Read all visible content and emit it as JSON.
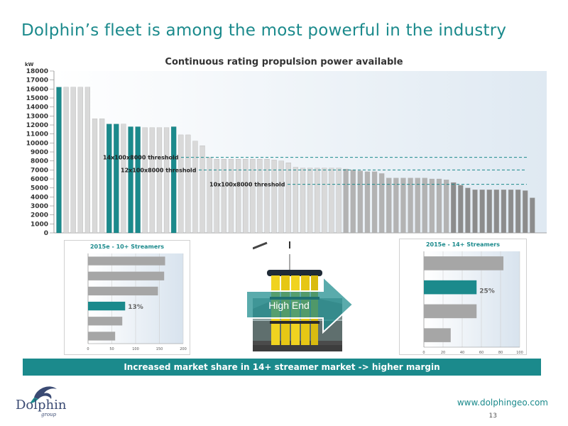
{
  "page": {
    "title": "Dolphin’s fleet is among the most powerful in the industry",
    "banner": "Increased market share in 14+ streamer market -> higher margin",
    "website": "www.dolphingeo.com",
    "page_number": "13",
    "arrow_label": "High End",
    "logo_name": "Dolphin",
    "logo_sub": "group"
  },
  "colors": {
    "accent": "#1b8a8c",
    "light_bar": "#d9d9d9",
    "dark_bar": "#8c8c8c",
    "title": "#1b8a8c"
  },
  "chart_data": [
    {
      "type": "bar",
      "title": "Continuous rating propulsion power available",
      "ylabel": "kW",
      "ylim": [
        0,
        18000
      ],
      "yticks": [
        0,
        1000,
        2000,
        3000,
        4000,
        5000,
        6000,
        7000,
        8000,
        9000,
        10000,
        11000,
        12000,
        13000,
        14000,
        15000,
        16000,
        17000,
        18000
      ],
      "values": [
        16200,
        16200,
        16200,
        16200,
        16200,
        12700,
        12700,
        12100,
        12100,
        12100,
        11800,
        11800,
        11700,
        11700,
        11700,
        11700,
        11800,
        10900,
        10900,
        10200,
        9700,
        8400,
        8200,
        8200,
        8200,
        8200,
        8200,
        8200,
        8200,
        8200,
        8100,
        8000,
        7800,
        7300,
        7200,
        7200,
        7200,
        7200,
        7200,
        7200,
        7100,
        7000,
        6900,
        6800,
        6800,
        6600,
        6100,
        6100,
        6100,
        6100,
        6100,
        6100,
        6000,
        6000,
        5900,
        5600,
        5300,
        5000,
        4800,
        4800,
        4800,
        4800,
        4800,
        4800,
        4800,
        4700,
        3900
      ],
      "highlight_indices": [
        0,
        7,
        8,
        10,
        11,
        16
      ],
      "thresholds": [
        {
          "label": "14x100x8000 threshold",
          "value": 8400
        },
        {
          "label": "12x100x8000 threshold",
          "value": 7000
        },
        {
          "label": "10x100x8000 threshold",
          "value": 5400
        }
      ],
      "grid": false
    },
    {
      "type": "bar",
      "orientation": "horizontal",
      "title": "2015e - 10+ Streamers",
      "xlim": [
        0,
        200
      ],
      "xticks": [
        0,
        50,
        100,
        150,
        200
      ],
      "values": [
        162,
        160,
        147,
        78,
        72,
        57
      ],
      "highlight_index": 3,
      "data_label": "13%"
    },
    {
      "type": "bar",
      "orientation": "horizontal",
      "title": "2015e - 14+ Streamers",
      "xlim": [
        0,
        100
      ],
      "xticks": [
        0,
        20,
        40,
        60,
        80,
        100
      ],
      "values": [
        83,
        55,
        55,
        28
      ],
      "highlight_index": 1,
      "data_label": "25%"
    }
  ]
}
